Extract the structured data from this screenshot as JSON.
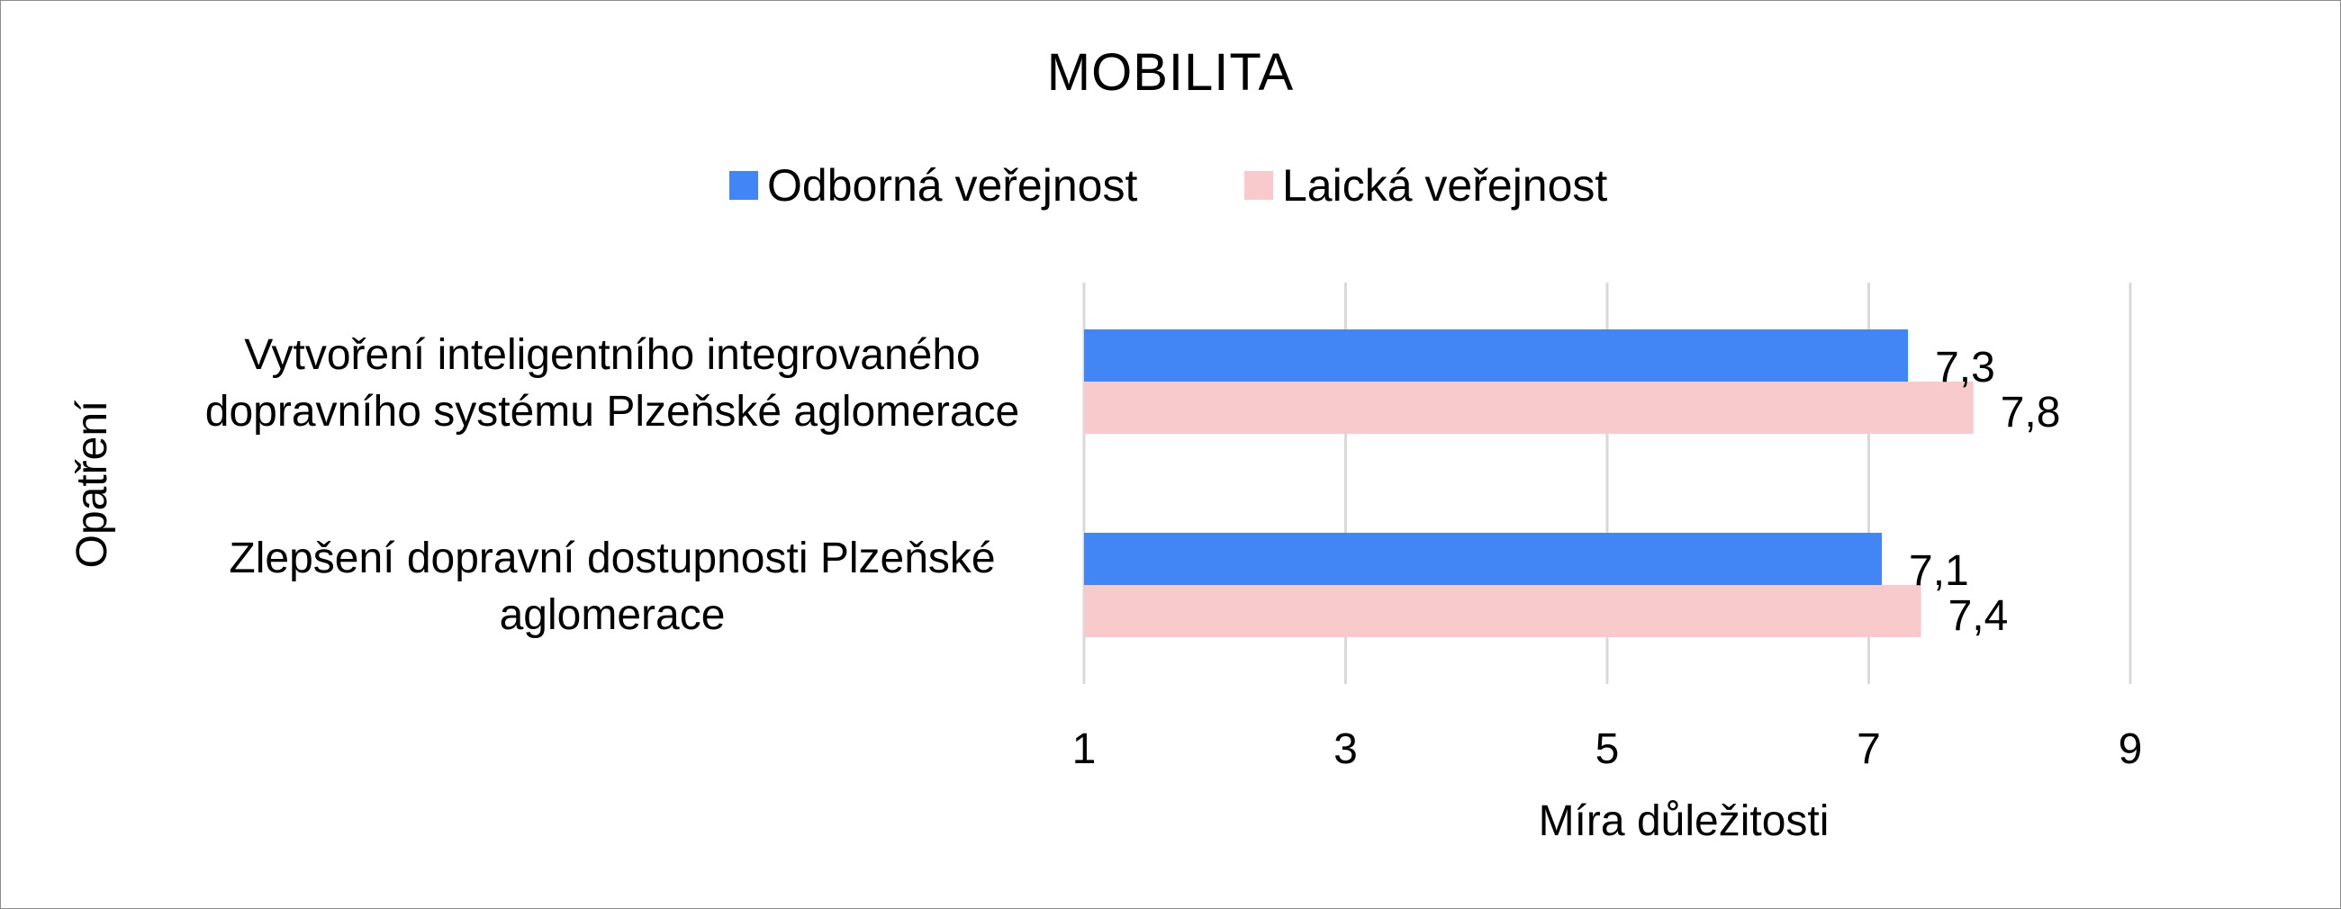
{
  "chart_data": {
    "type": "bar",
    "orientation": "horizontal",
    "title": "MOBILITA",
    "xlabel": "Míra důležitosti",
    "ylabel": "Opatření",
    "xlim": [
      1,
      9
    ],
    "x_ticks": [
      1,
      3,
      5,
      7,
      9
    ],
    "x_tick_labels": [
      "1",
      "3",
      "5",
      "7",
      "9"
    ],
    "grid": true,
    "legend_position": "top",
    "categories": [
      [
        "Vytvoření inteligentního integrovaného",
        "dopravního systému Plzeňské aglomerace"
      ],
      [
        "Zlepšení dopravní dostupnosti Plzeňské",
        "aglomerace"
      ]
    ],
    "series": [
      {
        "name": "Odborná veřejnost",
        "color": "#4285f4",
        "values": [
          7.3,
          7.1
        ],
        "data_labels": [
          "7,3",
          "7,1"
        ]
      },
      {
        "name": "Laická veřejnost",
        "color": "#f8cacb",
        "values": [
          7.8,
          7.4
        ],
        "data_labels": [
          "7,8",
          "7,4"
        ]
      }
    ]
  }
}
